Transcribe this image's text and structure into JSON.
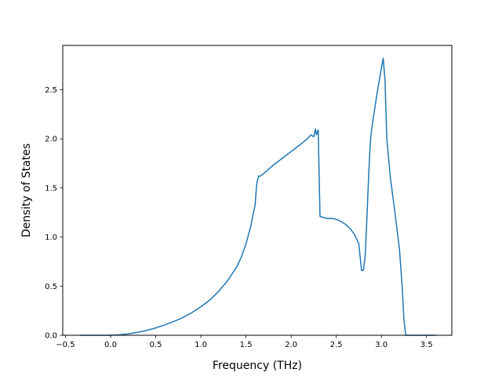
{
  "chart_data": {
    "type": "line",
    "title": "",
    "xlabel": "Frequency (THz)",
    "ylabel": "Density of States",
    "xlim": [
      -0.53,
      3.78
    ],
    "ylim": [
      0.0,
      2.95
    ],
    "grid": false,
    "line_color": "#1f77b4",
    "x_ticks": [
      -0.5,
      0.0,
      0.5,
      1.0,
      1.5,
      2.0,
      2.5,
      3.0,
      3.5
    ],
    "x_tick_labels": [
      "−0.5",
      "0.0",
      "0.5",
      "1.0",
      "1.5",
      "2.0",
      "2.5",
      "3.0",
      "3.5"
    ],
    "y_ticks": [
      0.0,
      0.5,
      1.0,
      1.5,
      2.0,
      2.5
    ],
    "y_tick_labels": [
      "0.0",
      "0.5",
      "1.0",
      "1.5",
      "2.0",
      "2.5"
    ],
    "series": [
      {
        "x": [
          -0.34,
          -0.2,
          0.0,
          0.1,
          0.2,
          0.3,
          0.4,
          0.5,
          0.6,
          0.7,
          0.8,
          0.9,
          1.0,
          1.1,
          1.2,
          1.3,
          1.4,
          1.45,
          1.5,
          1.55,
          1.6,
          1.62,
          1.64,
          1.66,
          1.7,
          1.8,
          1.9,
          2.0,
          2.1,
          2.18,
          2.2,
          2.22,
          2.25,
          2.27,
          2.28,
          2.3,
          2.32,
          2.35,
          2.4,
          2.45,
          2.5,
          2.55,
          2.6,
          2.65,
          2.7,
          2.75,
          2.78,
          2.8,
          2.82,
          2.84,
          2.86,
          2.88,
          2.9,
          2.95,
          3.0,
          3.02,
          3.04,
          3.06,
          3.1,
          3.15,
          3.2,
          3.23,
          3.25,
          3.27,
          3.3,
          3.4,
          3.5,
          3.6
        ],
        "y": [
          0.0,
          0.0,
          0.0,
          0.005,
          0.015,
          0.03,
          0.05,
          0.075,
          0.105,
          0.14,
          0.18,
          0.23,
          0.29,
          0.36,
          0.45,
          0.56,
          0.7,
          0.8,
          0.93,
          1.1,
          1.32,
          1.55,
          1.62,
          1.62,
          1.65,
          1.73,
          1.8,
          1.87,
          1.94,
          2.0,
          2.02,
          2.04,
          2.02,
          2.1,
          2.04,
          2.09,
          1.21,
          1.2,
          1.19,
          1.19,
          1.18,
          1.16,
          1.13,
          1.09,
          1.03,
          0.93,
          0.66,
          0.66,
          0.8,
          1.2,
          1.65,
          2.0,
          2.15,
          2.45,
          2.72,
          2.82,
          2.6,
          2.0,
          1.6,
          1.25,
          0.88,
          0.5,
          0.15,
          0.0,
          0.0,
          0.0,
          0.0,
          0.0
        ]
      }
    ]
  }
}
